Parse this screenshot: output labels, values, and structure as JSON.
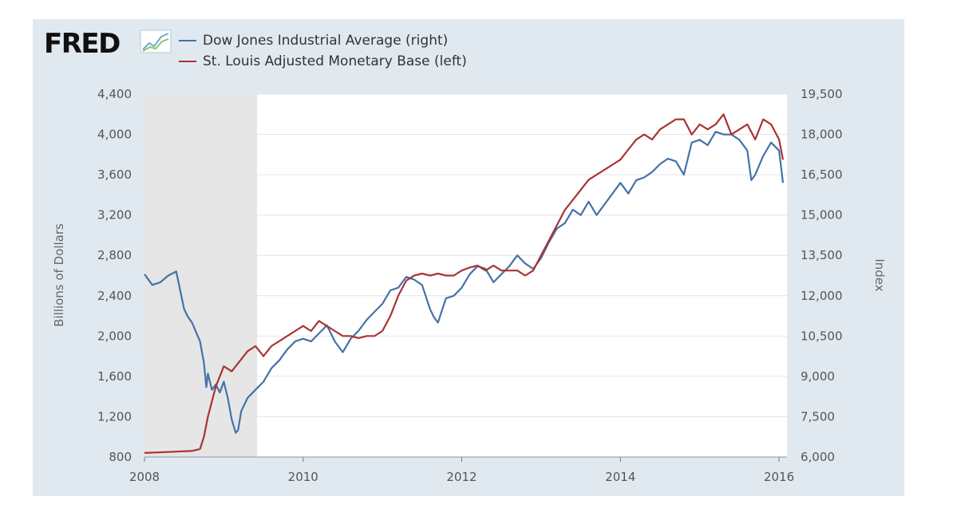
{
  "chart_data": {
    "type": "line",
    "title": "",
    "logo": "FRED",
    "xlim": [
      2008.0,
      2016.1
    ],
    "x_ticks": [
      "2008",
      "2010",
      "2012",
      "2014",
      "2016"
    ],
    "x_tick_values": [
      2008,
      2010,
      2012,
      2014,
      2016
    ],
    "left_axis": {
      "label": "Billions of Dollars",
      "range": [
        800,
        4400
      ],
      "ticks": [
        "800",
        "1,200",
        "1,600",
        "2,000",
        "2,400",
        "2,800",
        "3,200",
        "3,600",
        "4,000",
        "4,400"
      ],
      "tick_values": [
        800,
        1200,
        1600,
        2000,
        2400,
        2800,
        3200,
        3600,
        4000,
        4400
      ]
    },
    "right_axis": {
      "label": "Index",
      "range": [
        6000,
        19500
      ],
      "ticks": [
        "6,000",
        "7,500",
        "9,000",
        "10,500",
        "12,000",
        "13,500",
        "15,000",
        "16,500",
        "18,000",
        "19,500"
      ],
      "tick_values": [
        6000,
        7500,
        9000,
        10500,
        12000,
        13500,
        15000,
        16500,
        18000,
        19500
      ]
    },
    "recession": {
      "start": 2008.0,
      "end": 2009.42
    },
    "series": [
      {
        "name": "Dow Jones Industrial Average (right)",
        "axis": "right",
        "color": "#4572a7",
        "x": [
          2008.0,
          2008.1,
          2008.2,
          2008.3,
          2008.4,
          2008.5,
          2008.55,
          2008.6,
          2008.7,
          2008.75,
          2008.78,
          2008.8,
          2008.85,
          2008.9,
          2008.95,
          2009.0,
          2009.05,
          2009.1,
          2009.15,
          2009.18,
          2009.22,
          2009.3,
          2009.4,
          2009.5,
          2009.6,
          2009.7,
          2009.8,
          2009.9,
          2010.0,
          2010.1,
          2010.2,
          2010.3,
          2010.4,
          2010.5,
          2010.6,
          2010.7,
          2010.8,
          2010.9,
          2011.0,
          2011.1,
          2011.2,
          2011.3,
          2011.4,
          2011.5,
          2011.6,
          2011.65,
          2011.7,
          2011.8,
          2011.9,
          2012.0,
          2012.1,
          2012.2,
          2012.3,
          2012.4,
          2012.5,
          2012.6,
          2012.7,
          2012.8,
          2012.9,
          2013.0,
          2013.1,
          2013.2,
          2013.3,
          2013.4,
          2013.5,
          2013.6,
          2013.7,
          2013.8,
          2013.9,
          2014.0,
          2014.1,
          2014.2,
          2014.3,
          2014.4,
          2014.5,
          2014.6,
          2014.7,
          2014.8,
          2014.9,
          2015.0,
          2015.1,
          2015.2,
          2015.3,
          2015.4,
          2015.5,
          2015.6,
          2015.65,
          2015.7,
          2015.8,
          2015.9,
          2016.0,
          2016.05
        ],
        "values": [
          12800,
          12400,
          12500,
          12750,
          12900,
          11500,
          11200,
          11000,
          10300,
          9500,
          8600,
          9100,
          8500,
          8700,
          8400,
          8800,
          8200,
          7400,
          6900,
          7000,
          7700,
          8200,
          8500,
          8800,
          9300,
          9600,
          10000,
          10300,
          10400,
          10300,
          10600,
          10900,
          10300,
          9900,
          10400,
          10700,
          11100,
          11400,
          11700,
          12200,
          12300,
          12700,
          12600,
          12400,
          11500,
          11200,
          11000,
          11900,
          12000,
          12300,
          12800,
          13100,
          13000,
          12500,
          12800,
          13100,
          13500,
          13200,
          13000,
          13400,
          14000,
          14500,
          14700,
          15200,
          15000,
          15500,
          15000,
          15400,
          15800,
          16200,
          15800,
          16300,
          16400,
          16600,
          16900,
          17100,
          17000,
          16500,
          17700,
          17800,
          17600,
          18100,
          18000,
          18000,
          17800,
          17400,
          16300,
          16500,
          17200,
          17700,
          17400,
          16200
        ]
      },
      {
        "name": "St. Louis Adjusted Monetary Base (left)",
        "axis": "left",
        "color": "#aa3333",
        "x": [
          2008.0,
          2008.3,
          2008.6,
          2008.7,
          2008.75,
          2008.8,
          2008.9,
          2009.0,
          2009.1,
          2009.2,
          2009.3,
          2009.4,
          2009.5,
          2009.6,
          2009.7,
          2009.8,
          2009.9,
          2010.0,
          2010.1,
          2010.2,
          2010.3,
          2010.4,
          2010.5,
          2010.6,
          2010.7,
          2010.8,
          2010.9,
          2011.0,
          2011.1,
          2011.2,
          2011.3,
          2011.4,
          2011.5,
          2011.6,
          2011.7,
          2011.8,
          2011.9,
          2012.0,
          2012.1,
          2012.2,
          2012.3,
          2012.4,
          2012.5,
          2012.6,
          2012.7,
          2012.8,
          2012.9,
          2013.0,
          2013.1,
          2013.2,
          2013.3,
          2013.4,
          2013.5,
          2013.6,
          2013.7,
          2013.8,
          2013.9,
          2014.0,
          2014.1,
          2014.2,
          2014.3,
          2014.4,
          2014.5,
          2014.6,
          2014.7,
          2014.8,
          2014.9,
          2015.0,
          2015.1,
          2015.2,
          2015.3,
          2015.4,
          2015.5,
          2015.6,
          2015.7,
          2015.8,
          2015.9,
          2016.0,
          2016.05
        ],
        "values": [
          840,
          850,
          860,
          880,
          1000,
          1200,
          1500,
          1700,
          1650,
          1750,
          1850,
          1900,
          1800,
          1900,
          1950,
          2000,
          2050,
          2100,
          2050,
          2150,
          2100,
          2050,
          2000,
          2000,
          1980,
          2000,
          2000,
          2050,
          2200,
          2400,
          2550,
          2600,
          2620,
          2600,
          2620,
          2600,
          2600,
          2650,
          2680,
          2700,
          2650,
          2700,
          2650,
          2650,
          2650,
          2600,
          2650,
          2800,
          2950,
          3100,
          3250,
          3350,
          3450,
          3550,
          3600,
          3650,
          3700,
          3750,
          3850,
          3950,
          4000,
          3950,
          4050,
          4100,
          4150,
          4150,
          4000,
          4100,
          4050,
          4100,
          4200,
          4000,
          4050,
          4100,
          3950,
          4150,
          4100,
          3950,
          3750
        ]
      }
    ]
  }
}
